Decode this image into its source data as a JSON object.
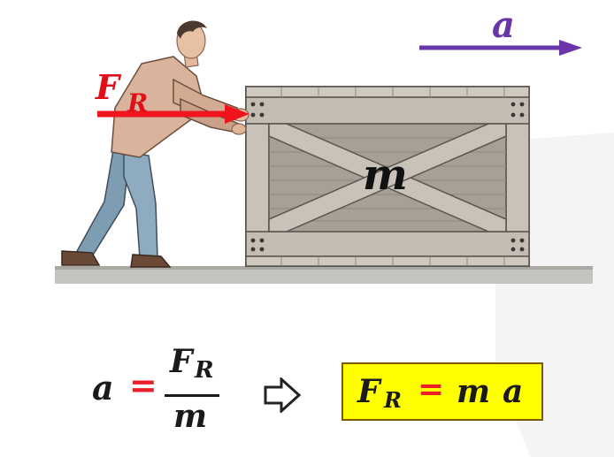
{
  "labels": {
    "acceleration": "a",
    "force": "F",
    "force_subscript": "R",
    "mass": "m"
  },
  "formula_left": {
    "lhs": "a",
    "equals": "=",
    "numerator": "F",
    "numerator_subscript": "R",
    "denominator": "m"
  },
  "formula_box": {
    "force": "F",
    "force_subscript": "R",
    "equals": "=",
    "mass": "m",
    "acceleration": "a"
  },
  "colors": {
    "acceleration_arrow": "#6a35a8",
    "force_arrow": "#f0141e",
    "force_label": "#e0101a",
    "equals_sign": "#e8202a",
    "formula_box_fill": "#ffff00",
    "crate_wood": "#b9b2a8",
    "crate_dark": "#8e877d",
    "ground": "#c4c3bd"
  },
  "icons": {
    "implies": "implies-arrow-icon"
  }
}
